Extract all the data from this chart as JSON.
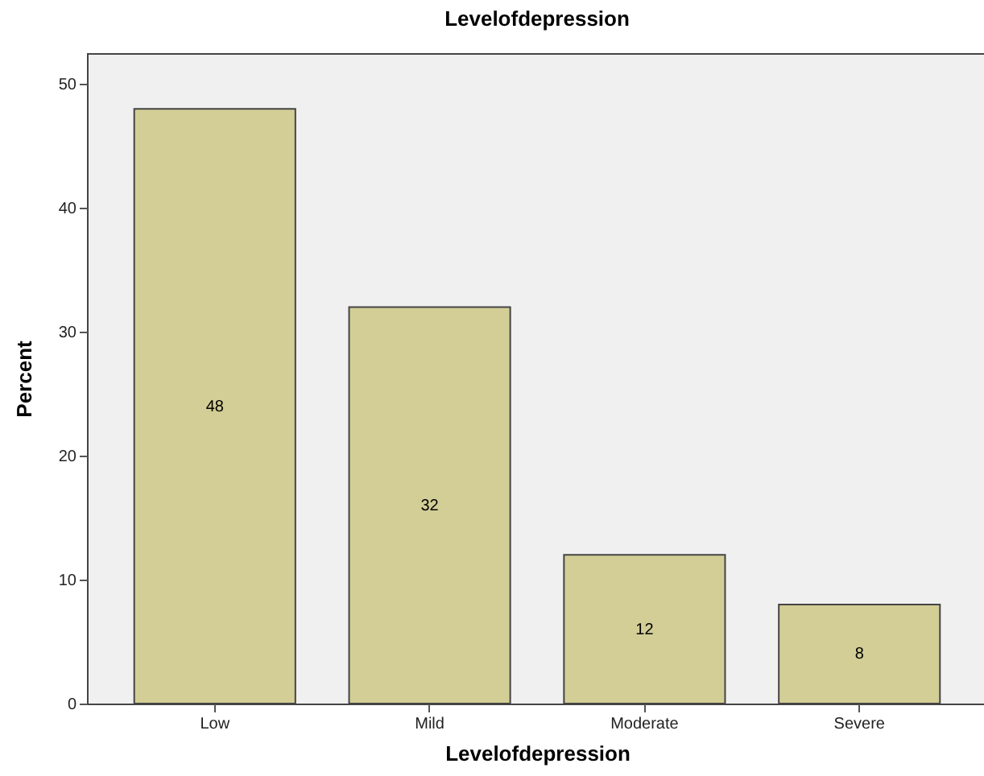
{
  "chart_data": {
    "type": "bar",
    "title": "Levelofdepression",
    "xlabel": "Levelofdepression",
    "ylabel": "Percent",
    "categories": [
      "Low",
      "Mild",
      "Moderate",
      "Severe"
    ],
    "values": [
      48,
      32,
      12,
      8
    ],
    "color": "#d3ce96",
    "ylim": [
      0,
      52.5
    ],
    "yticks": [
      0,
      10,
      20,
      30,
      40,
      50
    ],
    "grid": false,
    "data_labels": true
  }
}
